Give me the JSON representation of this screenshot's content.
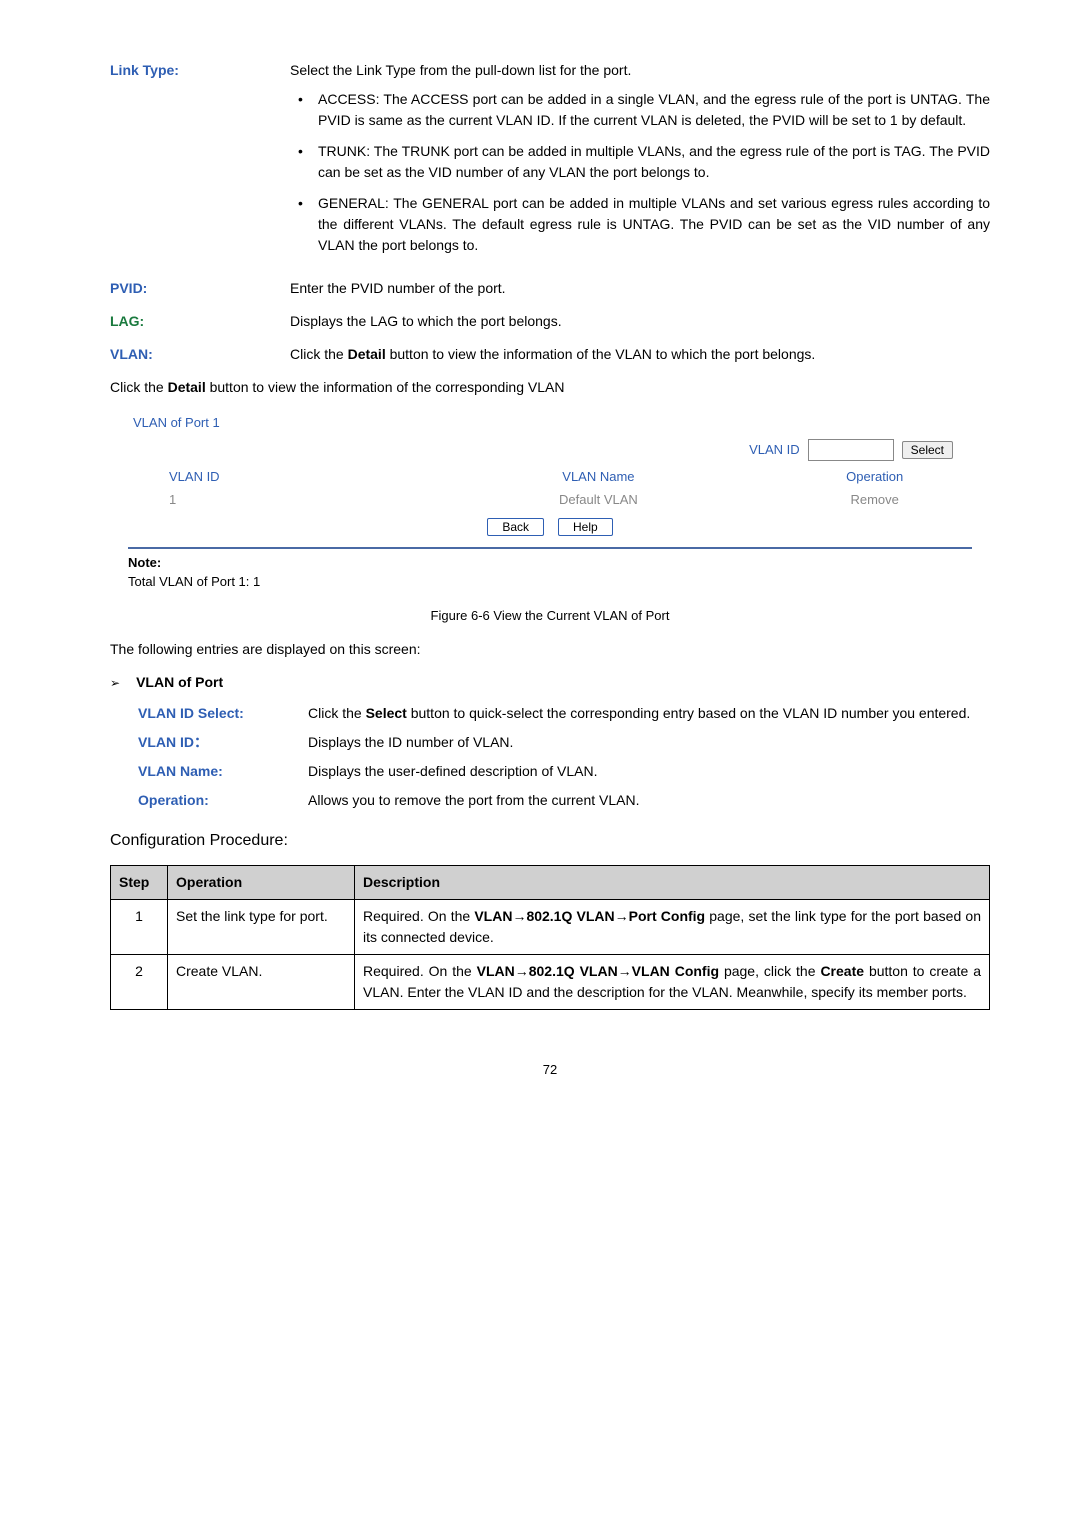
{
  "defs": {
    "linkType": {
      "label": "Link Type:",
      "desc": "Select the Link Type from the pull-down list for the port.",
      "bullets": [
        "ACCESS: The ACCESS port can be added in a single VLAN, and the egress rule of the port is UNTAG. The PVID is same as the current VLAN ID. If the current VLAN is deleted, the PVID will be set to 1 by default.",
        "TRUNK: The TRUNK port can be added in multiple VLANs, and the egress rule of the port is TAG. The PVID can be set as the VID number of any VLAN the port belongs to.",
        "GENERAL: The GENERAL port can be added in multiple VLANs and set various egress rules according to the different VLANs. The default egress rule is UNTAG. The PVID can be set as the VID number of any VLAN the port belongs to."
      ]
    },
    "pvid": {
      "label": "PVID:",
      "desc": "Enter the PVID number of the port."
    },
    "lag": {
      "label": "LAG:",
      "desc": "Displays the LAG to which the port belongs."
    },
    "vlan": {
      "label": "VLAN:",
      "descPre": "Click the ",
      "descBold": "Detail",
      "descPost": " button to view the information of the VLAN to which the port belongs."
    }
  },
  "intro": {
    "pre": "Click the ",
    "bold": "Detail",
    "post": " button to view the information of the corresponding VLAN"
  },
  "panel": {
    "title": "VLAN of Port 1",
    "searchLabel": "VLAN ID",
    "selectBtn": "Select",
    "headers": {
      "c1": "VLAN ID",
      "c2": "VLAN Name",
      "c3": "Operation"
    },
    "row": {
      "c1": "1",
      "c2": "Default VLAN",
      "c3": "Remove"
    },
    "backBtn": "Back",
    "helpBtn": "Help"
  },
  "note": {
    "label": "Note:",
    "text": "Total VLAN of Port 1: 1"
  },
  "figCaption": "Figure 6-6 View the Current VLAN of Port",
  "entriesText": "The following entries are displayed on this screen:",
  "sectionTitle": "VLAN of Port",
  "subdefs": {
    "idSel": {
      "label": "VLAN ID Select:",
      "pre": "Click the ",
      "bold": "Select",
      "post": " button to quick-select the corresponding entry based on the VLAN ID number you entered."
    },
    "id": {
      "label": "VLAN ID：",
      "desc": "Displays the ID number of VLAN."
    },
    "name": {
      "label": "VLAN Name:",
      "desc": "Displays the user-defined description of VLAN."
    },
    "op": {
      "label": "Operation:",
      "desc": "Allows you to remove the port from the current VLAN."
    }
  },
  "procTitle": "Configuration Procedure:",
  "procHeaders": {
    "step": "Step",
    "op": "Operation",
    "desc": "Description"
  },
  "procRows": [
    {
      "step": "1",
      "op": "Set the link type for port.",
      "pre": "Required. On the ",
      "bold": "VLAN→802.1Q VLAN→Port Config",
      "post": " page, set the link type for the port based on its connected device."
    },
    {
      "step": "2",
      "op": "Create VLAN.",
      "pre": "Required. On the ",
      "bold": "VLAN→802.1Q VLAN→VLAN Config",
      "mid": " page, click the ",
      "bold2": "Create",
      "post": " button to create a VLAN. Enter the VLAN ID and the description for the VLAN. Meanwhile, specify its member ports."
    }
  ],
  "pageNum": "72"
}
